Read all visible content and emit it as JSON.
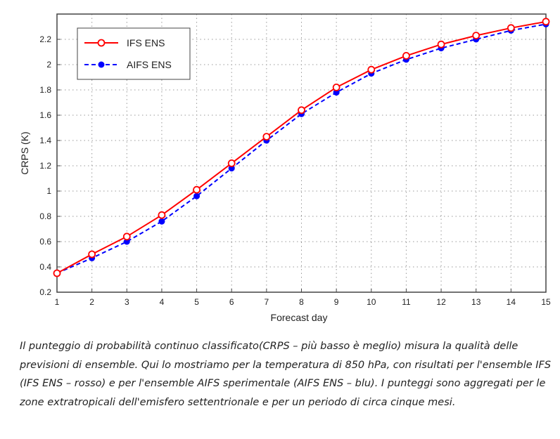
{
  "chart_data": {
    "type": "line",
    "xlabel": "Forecast day",
    "ylabel": "CRPS (K)",
    "x": [
      1,
      2,
      3,
      4,
      5,
      6,
      7,
      8,
      9,
      10,
      11,
      12,
      13,
      14,
      15
    ],
    "xticks": [
      "1",
      "2",
      "3",
      "4",
      "5",
      "6",
      "7",
      "8",
      "9",
      "10",
      "11",
      "12",
      "13",
      "14",
      "15"
    ],
    "yticks": [
      "0.2",
      "0.4",
      "0.6",
      "0.8",
      "1",
      "1.2",
      "1.4",
      "1.6",
      "1.8",
      "2",
      "2.2"
    ],
    "xlim": [
      1,
      15
    ],
    "ylim": [
      0.2,
      2.4
    ],
    "grid": true,
    "legend": "top-left",
    "series": [
      {
        "name": "IFS ENS",
        "color": "#ff0000",
        "style": "solid",
        "marker": "open-circle",
        "values": [
          0.35,
          0.5,
          0.64,
          0.81,
          1.01,
          1.22,
          1.43,
          1.64,
          1.82,
          1.96,
          2.07,
          2.16,
          2.23,
          2.29,
          2.34
        ]
      },
      {
        "name": "AIFS ENS",
        "color": "#0000ff",
        "style": "dashed",
        "marker": "filled-circle",
        "values": [
          0.35,
          0.47,
          0.6,
          0.76,
          0.96,
          1.18,
          1.4,
          1.61,
          1.78,
          1.93,
          2.04,
          2.13,
          2.2,
          2.27,
          2.32
        ]
      }
    ]
  },
  "caption": "Il punteggio di probabilità continuo classificato(CRPS – più basso è meglio) misura la qualità delle previsioni di ensemble. Qui lo mostriamo per la temperatura di 850 hPa, con risultati per l'ensemble IFS (IFS ENS – rosso) e per l'ensemble AIFS sperimentale (AIFS ENS – blu). I punteggi sono aggregati per le zone extratropicali dell'emisfero settentrionale e per un periodo di circa cinque mesi."
}
